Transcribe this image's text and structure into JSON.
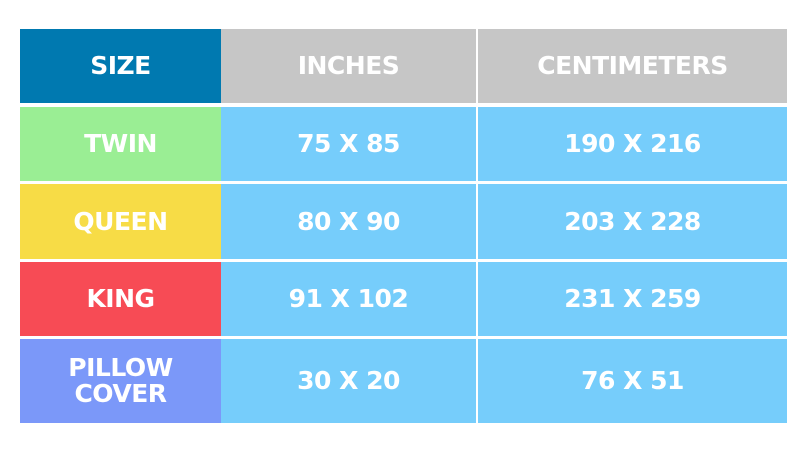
{
  "colors": {
    "size_header": "#0079b0",
    "other_headers": "#c6c6c6",
    "value_cells": "#76cdfb",
    "twin": "#9aee94",
    "queen": "#f7dc46",
    "king": "#f74b55",
    "pillow_cover": "#7b98f9"
  },
  "headers": [
    "SIZE",
    "INCHES",
    "CENTIMETERS"
  ],
  "rows": [
    {
      "size": "TWIN",
      "inches": "75 X 85",
      "cm": "190 X 216"
    },
    {
      "size": "QUEEN",
      "inches": "80 X 90",
      "cm": "203 X 228"
    },
    {
      "size": "KING",
      "inches": "91 X 102",
      "cm": "231 X 259"
    },
    {
      "size": "PILLOW COVER",
      "inches": "30 X 20",
      "cm": "76 X 51"
    }
  ]
}
